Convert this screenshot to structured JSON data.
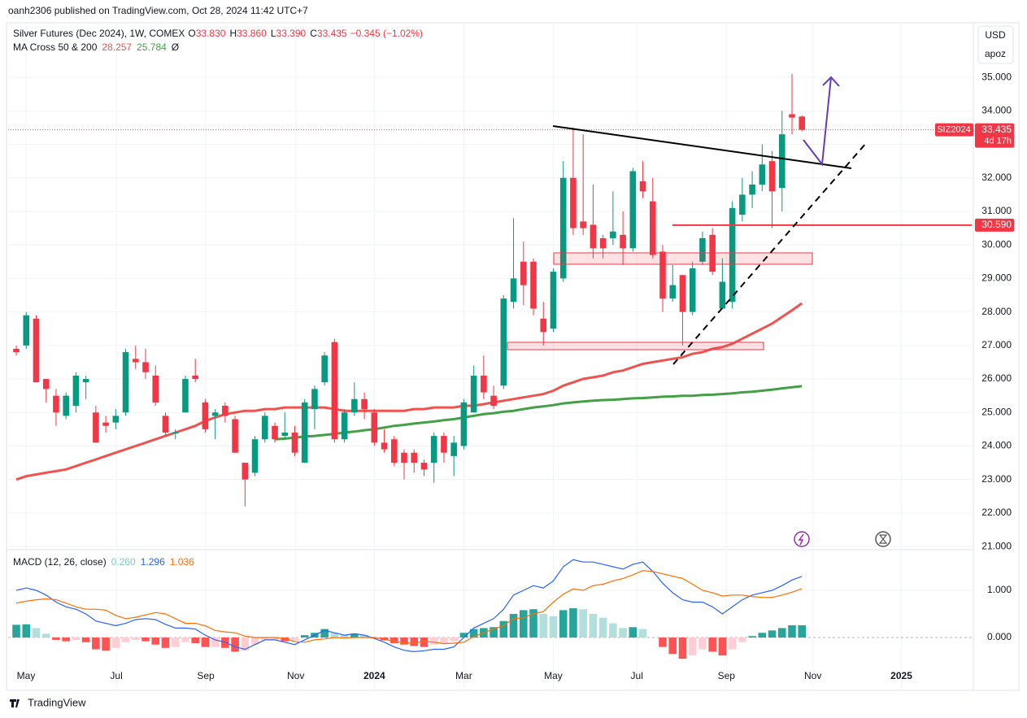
{
  "header": {
    "publisher": "oanh2306 published on TradingView.com, Oct 28, 2024 11:42 UTC+7"
  },
  "footer": {
    "brand": "TradingView"
  },
  "toolbar": {
    "currency": "USD",
    "scale": "apoz"
  },
  "chart_data": {
    "type": "candlestick",
    "title": "Silver Futures (Dec 2024), 1W, COMEX",
    "ohlc_legend": [
      {
        "label": "O",
        "value": "33.830"
      },
      {
        "label": "H",
        "value": "33.860"
      },
      {
        "label": "L",
        "value": "33.390"
      },
      {
        "label": "C",
        "value": "33.435"
      }
    ],
    "change": "−0.345 (−1.02%)",
    "up_color": "#089981",
    "down_color": "#f23645",
    "open": [
      26.9,
      27.0,
      27.8,
      26.0,
      25.5,
      24.9,
      25.2,
      25.9,
      25.0,
      24.7,
      24.7,
      25.0,
      26.6,
      26.5,
      26.1,
      24.9,
      24.4,
      25.0,
      26.1,
      25.3,
      24.9,
      25.2,
      24.8,
      23.5,
      23.2,
      24.2,
      24.6,
      24.3,
      24.4,
      23.5,
      25.1,
      25.9,
      27.1,
      24.2,
      25.0,
      25.4,
      25.0,
      24.1,
      24.2,
      23.8,
      23.8,
      23.5,
      23.5,
      24.3,
      23.7,
      24.0,
      25.0,
      26.1,
      25.5,
      25.8,
      28.3,
      29.5,
      29.5,
      27.8,
      27.5,
      29.0,
      32.0,
      30.7,
      30.6,
      30.2,
      30.2,
      30.3,
      29.9,
      31.9,
      31.3,
      29.8,
      28.4,
      29.1,
      28.0,
      29.5,
      30.3,
      28.1,
      28.3,
      30.9,
      31.5,
      31.8,
      32.5,
      31.7,
      33.9,
      33.83
    ],
    "high": [
      27.0,
      28.0,
      27.9,
      26.0,
      25.7,
      25.6,
      26.2,
      26.1,
      25.2,
      24.9,
      25.1,
      26.9,
      27.0,
      26.9,
      26.4,
      25.0,
      24.5,
      26.1,
      26.6,
      25.4,
      25.1,
      25.3,
      24.9,
      23.5,
      24.3,
      25.0,
      24.7,
      25.0,
      24.6,
      25.4,
      25.8,
      26.8,
      27.2,
      25.1,
      25.9,
      25.6,
      25.1,
      24.5,
      24.3,
      23.9,
      23.9,
      23.6,
      24.4,
      24.4,
      24.3,
      25.4,
      26.4,
      26.7,
      25.8,
      28.5,
      30.8,
      30.1,
      29.6,
      28.3,
      29.3,
      32.5,
      33.5,
      33.3,
      31.8,
      30.3,
      31.6,
      31.0,
      32.3,
      32.5,
      32.0,
      30.0,
      29.4,
      29.1,
      29.5,
      30.4,
      30.5,
      29.6,
      31.3,
      32.0,
      32.2,
      33.0,
      32.8,
      34.0,
      35.1,
      33.86
    ],
    "low": [
      26.7,
      26.9,
      25.9,
      25.3,
      24.6,
      24.8,
      25.0,
      25.4,
      24.1,
      24.4,
      24.5,
      24.9,
      26.3,
      26.0,
      25.2,
      24.3,
      24.2,
      25.0,
      25.9,
      24.4,
      24.2,
      24.7,
      23.8,
      22.2,
      23.1,
      24.1,
      24.1,
      24.2,
      23.7,
      23.5,
      24.5,
      25.8,
      24.1,
      24.1,
      24.9,
      24.8,
      24.0,
      23.8,
      23.4,
      23.0,
      23.2,
      23.1,
      22.9,
      23.5,
      23.1,
      23.9,
      25.0,
      25.4,
      25.1,
      25.7,
      28.1,
      28.2,
      27.9,
      27.0,
      27.4,
      28.9,
      30.3,
      30.3,
      29.6,
      29.6,
      30.0,
      29.4,
      29.8,
      31.4,
      29.6,
      28.0,
      28.3,
      27.0,
      27.9,
      29.4,
      29.1,
      28.1,
      28.1,
      30.7,
      31.1,
      31.6,
      30.5,
      31.0,
      33.3,
      33.39
    ],
    "close": [
      26.8,
      27.9,
      25.9,
      25.7,
      25.0,
      25.5,
      26.1,
      26.0,
      24.1,
      24.6,
      24.9,
      26.8,
      26.5,
      26.2,
      25.3,
      24.4,
      24.4,
      26.0,
      26.0,
      24.5,
      25.0,
      24.9,
      23.8,
      23.0,
      24.2,
      24.9,
      24.2,
      24.4,
      23.8,
      25.3,
      25.7,
      26.7,
      24.2,
      25.0,
      25.4,
      25.1,
      24.1,
      23.9,
      23.5,
      23.5,
      23.5,
      23.3,
      24.3,
      23.8,
      24.1,
      25.3,
      26.1,
      25.6,
      25.2,
      28.4,
      29.0,
      28.8,
      28.1,
      27.4,
      29.2,
      32.0,
      30.5,
      30.5,
      29.9,
      29.9,
      30.4,
      29.9,
      32.2,
      31.6,
      29.7,
      28.4,
      28.8,
      28.0,
      29.3,
      30.2,
      29.2,
      28.9,
      31.1,
      31.5,
      31.8,
      32.4,
      31.6,
      33.3,
      33.8,
      33.435
    ],
    "ma_legend": {
      "title": "MA Cross 50 & 200",
      "ma50": "28.257",
      "ma200": "25.784",
      "extra": "Ø"
    },
    "series": [
      {
        "name": "MA 50",
        "color": "#ef5350",
        "values": [
          23.0,
          23.1,
          23.15,
          23.2,
          23.25,
          23.3,
          23.4,
          23.5,
          23.6,
          23.7,
          23.8,
          23.9,
          24.0,
          24.1,
          24.2,
          24.3,
          24.4,
          24.5,
          24.6,
          24.75,
          24.85,
          24.95,
          25.0,
          25.05,
          25.05,
          25.1,
          25.1,
          25.15,
          25.15,
          25.15,
          25.15,
          25.15,
          25.1,
          25.05,
          25.05,
          25.05,
          25.05,
          25.05,
          25.05,
          25.05,
          25.1,
          25.1,
          25.15,
          25.15,
          25.15,
          25.2,
          25.2,
          25.25,
          25.3,
          25.35,
          25.4,
          25.45,
          25.5,
          25.55,
          25.65,
          25.8,
          25.9,
          26.0,
          26.05,
          26.1,
          26.2,
          26.25,
          26.35,
          26.45,
          26.5,
          26.55,
          26.6,
          26.65,
          26.75,
          26.8,
          26.9,
          26.95,
          27.05,
          27.2,
          27.35,
          27.5,
          27.65,
          27.85,
          28.05,
          28.257
        ]
      },
      {
        "name": "MA 200",
        "color": "#43a047",
        "values": [
          null,
          null,
          null,
          null,
          null,
          null,
          null,
          null,
          null,
          null,
          null,
          null,
          null,
          null,
          null,
          null,
          null,
          null,
          null,
          null,
          null,
          null,
          null,
          null,
          null,
          null,
          24.2,
          24.22,
          24.25,
          24.28,
          24.3,
          24.33,
          24.36,
          24.4,
          24.43,
          24.47,
          24.5,
          24.55,
          24.6,
          24.63,
          24.67,
          24.7,
          24.73,
          24.77,
          24.8,
          24.85,
          24.9,
          24.95,
          24.98,
          25.02,
          25.05,
          25.1,
          25.15,
          25.18,
          25.22,
          25.27,
          25.3,
          25.33,
          25.35,
          25.37,
          25.38,
          25.4,
          25.42,
          25.43,
          25.45,
          25.47,
          25.48,
          25.5,
          25.5,
          25.52,
          25.53,
          25.55,
          25.57,
          25.6,
          25.62,
          25.65,
          25.68,
          25.72,
          25.75,
          25.784
        ]
      }
    ],
    "xlim": [
      -0.82,
      96.07
    ],
    "xticks": [
      {
        "value": 0.98,
        "label": "May"
      },
      {
        "value": 10.06,
        "label": "Jul"
      },
      {
        "value": 19.05,
        "label": "Sep"
      },
      {
        "value": 28.1,
        "label": "Nov"
      },
      {
        "value": 36,
        "label": "2024"
      },
      {
        "value": 45,
        "label": "Mar"
      },
      {
        "value": 54,
        "label": "May"
      },
      {
        "value": 62.4,
        "label": "Jul"
      },
      {
        "value": 71.4,
        "label": "Sep"
      },
      {
        "value": 80.1,
        "label": "Nov"
      },
      {
        "value": 89,
        "label": "2025"
      }
    ],
    "ylim": [
      20.93,
      36.58
    ],
    "yticks": [
      {
        "value": 21,
        "label": "21.000"
      },
      {
        "value": 22,
        "label": "22.000"
      },
      {
        "value": 23,
        "label": "23.000"
      },
      {
        "value": 24,
        "label": "24.000"
      },
      {
        "value": 25,
        "label": "25.000"
      },
      {
        "value": 26,
        "label": "26.000"
      },
      {
        "value": 27,
        "label": "27.000"
      },
      {
        "value": 28,
        "label": "28.000"
      },
      {
        "value": 29,
        "label": "29.000"
      },
      {
        "value": 30,
        "label": "30.000"
      },
      {
        "value": 31,
        "label": "31.000"
      },
      {
        "value": 32,
        "label": "32.000"
      },
      {
        "value": 33,
        "label": "33.000"
      },
      {
        "value": 34,
        "label": "34.000"
      },
      {
        "value": 35,
        "label": "35.000"
      }
    ],
    "grid": true,
    "price_tag": {
      "symbol": "SIZ2024",
      "value": "33.435",
      "countdown": "4d 17h"
    },
    "price_line": {
      "value": 30.59,
      "label": "30.590"
    },
    "macd": {
      "title": "MACD (12, 26, close)",
      "legend_values": [
        {
          "value": "0.260",
          "color": "#7fcfc6"
        },
        {
          "value": "1.296",
          "color": "#2962ff"
        },
        {
          "value": "1.036",
          "color": "#ff6d00"
        }
      ],
      "ylim": [
        -1.103,
        1.845
      ],
      "yticks": [
        {
          "value": 0,
          "label": "0.000"
        },
        {
          "value": 1,
          "label": "1.000"
        }
      ],
      "hist_colors": {
        "up_rising": "#26a69a",
        "up_falling": "#b2dfdb",
        "down_falling": "#ff5252",
        "down_rising": "#ffcdd2"
      },
      "histogram": [
        0.27,
        0.28,
        0.2,
        0.08,
        -0.05,
        -0.08,
        -0.05,
        -0.1,
        -0.25,
        -0.28,
        -0.22,
        -0.1,
        -0.05,
        -0.08,
        -0.15,
        -0.22,
        -0.2,
        -0.1,
        -0.12,
        -0.2,
        -0.2,
        -0.22,
        -0.3,
        -0.28,
        -0.15,
        -0.05,
        -0.05,
        -0.08,
        -0.06,
        0.05,
        0.1,
        0.18,
        0.1,
        0.06,
        0.08,
        0.05,
        -0.02,
        -0.06,
        -0.12,
        -0.15,
        -0.18,
        -0.2,
        -0.15,
        -0.12,
        -0.08,
        0.1,
        0.18,
        0.2,
        0.22,
        0.35,
        0.5,
        0.58,
        0.6,
        0.5,
        0.45,
        0.58,
        0.62,
        0.6,
        0.5,
        0.42,
        0.3,
        0.2,
        0.22,
        0.18,
        0.0,
        -0.2,
        -0.35,
        -0.45,
        -0.38,
        -0.25,
        -0.3,
        -0.38,
        -0.25,
        -0.1,
        0.03,
        0.1,
        0.15,
        0.2,
        0.26,
        0.26
      ],
      "series": [
        {
          "name": "MACD",
          "color": "#2962ff",
          "values": [
            1.0,
            1.05,
            1.0,
            0.9,
            0.75,
            0.65,
            0.6,
            0.5,
            0.35,
            0.3,
            0.25,
            0.3,
            0.38,
            0.4,
            0.38,
            0.28,
            0.2,
            0.2,
            0.18,
            0.05,
            -0.05,
            -0.1,
            -0.2,
            -0.25,
            -0.15,
            -0.05,
            -0.05,
            -0.1,
            -0.15,
            -0.05,
            0.05,
            0.15,
            0.1,
            0.05,
            0.08,
            0.05,
            -0.02,
            -0.1,
            -0.2,
            -0.27,
            -0.3,
            -0.28,
            -0.25,
            -0.25,
            -0.2,
            0.0,
            0.2,
            0.3,
            0.4,
            0.6,
            0.9,
            1.0,
            1.1,
            1.05,
            1.2,
            1.5,
            1.65,
            1.6,
            1.6,
            1.55,
            1.5,
            1.45,
            1.55,
            1.6,
            1.4,
            1.15,
            0.95,
            0.8,
            0.75,
            0.75,
            0.65,
            0.5,
            0.65,
            0.8,
            0.9,
            0.95,
            1.0,
            1.1,
            1.22,
            1.296
          ]
        },
        {
          "name": "Signal",
          "color": "#ff6d00",
          "values": [
            0.73,
            0.77,
            0.8,
            0.82,
            0.8,
            0.73,
            0.65,
            0.6,
            0.6,
            0.58,
            0.47,
            0.4,
            0.43,
            0.48,
            0.53,
            0.5,
            0.4,
            0.3,
            0.3,
            0.25,
            0.15,
            0.12,
            0.1,
            0.03,
            0.0,
            0.0,
            0.0,
            -0.02,
            -0.09,
            -0.1,
            -0.05,
            -0.03,
            0.0,
            -0.01,
            0.0,
            0.0,
            0.0,
            -0.04,
            -0.08,
            -0.12,
            -0.12,
            -0.08,
            -0.1,
            -0.13,
            -0.12,
            -0.1,
            0.02,
            0.1,
            0.18,
            0.25,
            0.4,
            0.42,
            0.5,
            0.55,
            0.75,
            0.92,
            1.03,
            1.0,
            1.1,
            1.13,
            1.2,
            1.25,
            1.33,
            1.42,
            1.4,
            1.35,
            1.3,
            1.25,
            1.13,
            1.0,
            0.95,
            0.88,
            0.9,
            0.9,
            0.87,
            0.85,
            0.85,
            0.9,
            0.96,
            1.036
          ]
        }
      ]
    }
  }
}
